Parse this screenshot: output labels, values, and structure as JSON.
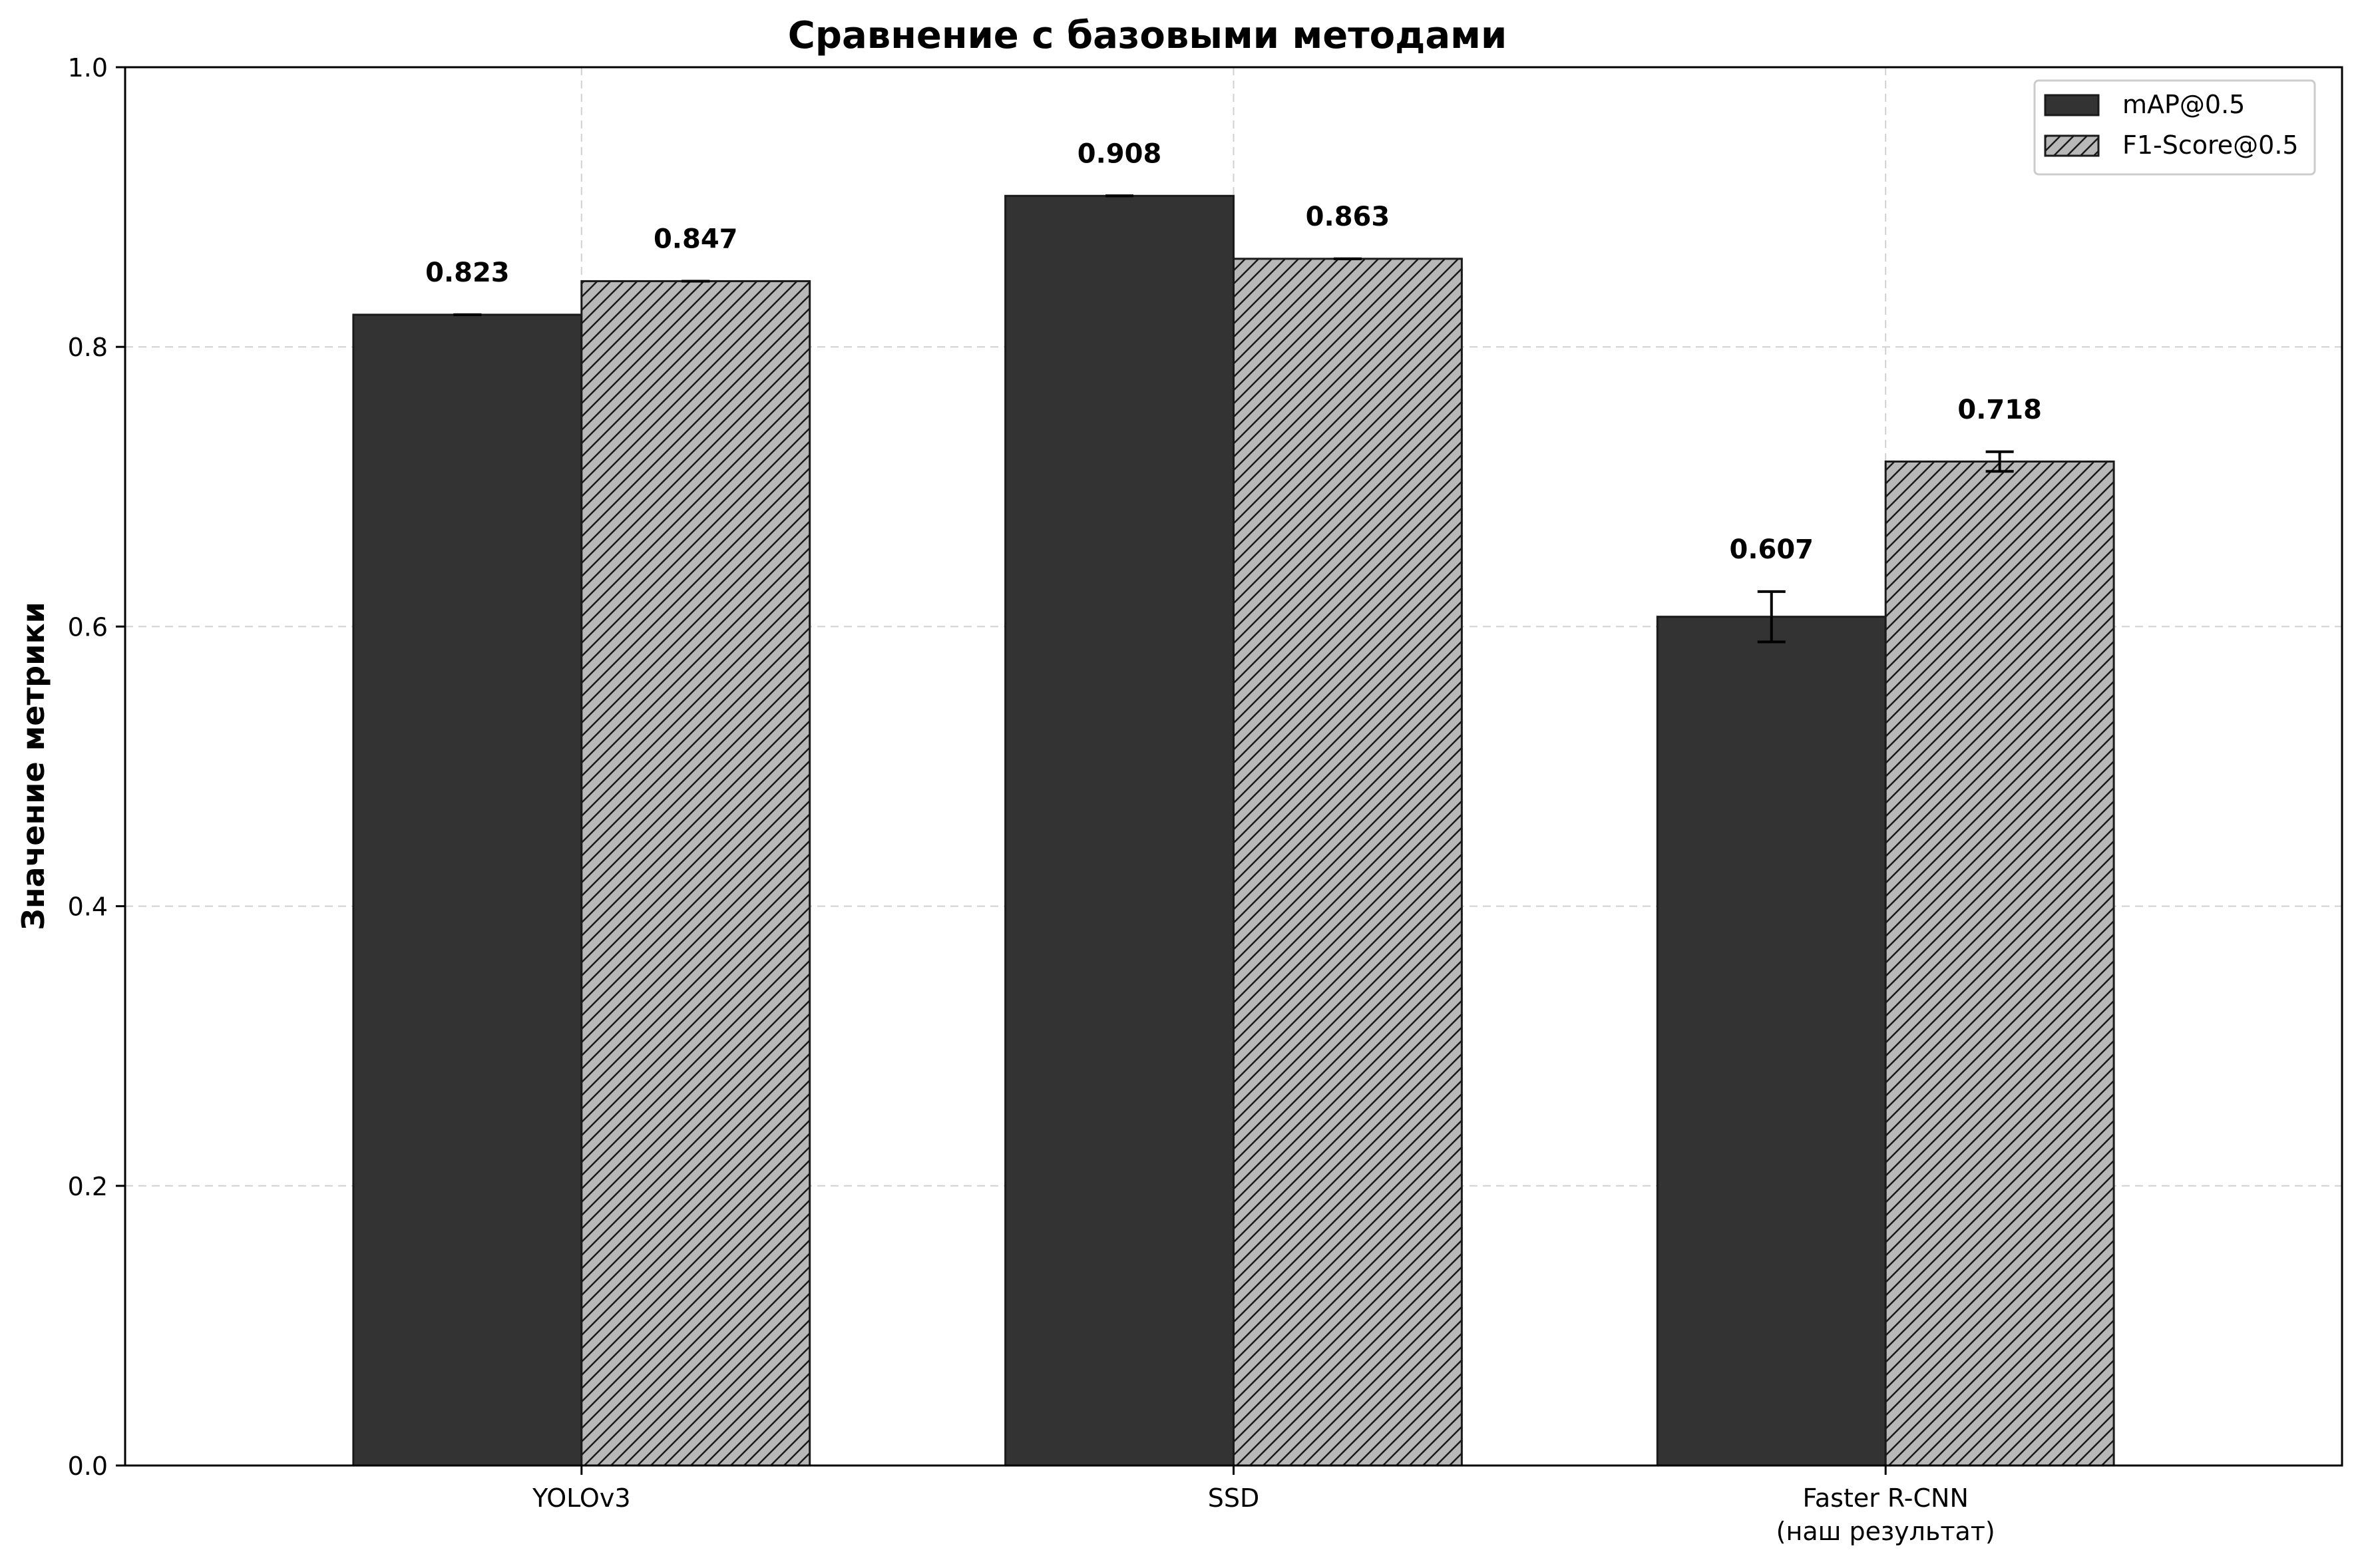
{
  "chart_data": {
    "type": "bar",
    "title": "Сравнение с базовыми методами",
    "xlabel": "",
    "ylabel": "Значение метрики",
    "categories": [
      [
        "YOLOv3"
      ],
      [
        "SSD"
      ],
      [
        "Faster R-CNN",
        "(наш результат)"
      ]
    ],
    "series": [
      {
        "name": "mAP@0.5",
        "values": [
          0.823,
          0.908,
          0.607
        ],
        "errors": [
          0,
          0,
          0.018
        ],
        "labels": [
          "0.823",
          "0.908",
          "0.607"
        ],
        "fill": "#333333",
        "hatch": false
      },
      {
        "name": "F1-Score@0.5",
        "values": [
          0.847,
          0.863,
          0.718
        ],
        "errors": [
          0,
          0,
          0.007
        ],
        "labels": [
          "0.847",
          "0.863",
          "0.718"
        ],
        "fill": "#b8b8b8",
        "hatch": true
      }
    ],
    "ylim": [
      0,
      1.0
    ],
    "yticks": [
      "0.0",
      "0.2",
      "0.4",
      "0.6",
      "0.8",
      "1.0"
    ],
    "grid": true,
    "legend_position": "top-right"
  }
}
